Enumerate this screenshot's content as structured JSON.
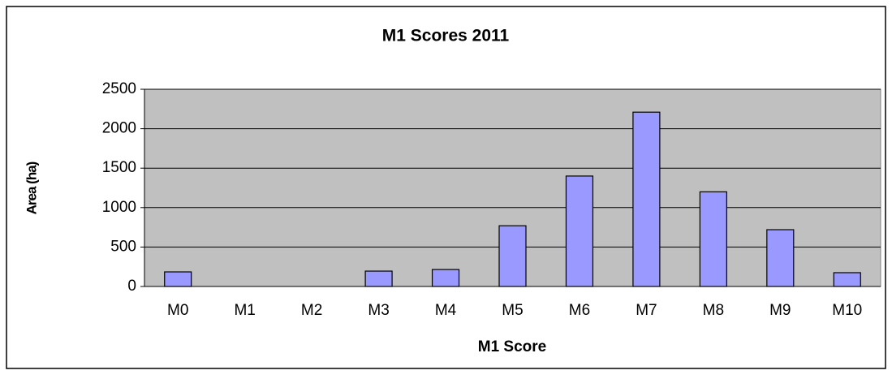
{
  "chart_data": {
    "type": "bar",
    "title": "M1 Scores 2011",
    "x_label": "M1 Score",
    "y_label": "Area (ha)",
    "categories": [
      "M0",
      "M1",
      "M2",
      "M3",
      "M4",
      "M5",
      "M6",
      "M7",
      "M8",
      "M9",
      "M10"
    ],
    "values": [
      185,
      0,
      0,
      195,
      215,
      770,
      1400,
      2210,
      1200,
      720,
      175
    ],
    "color": "#9999ff",
    "ylim": [
      0,
      2500
    ],
    "yticks": [
      0,
      500,
      1000,
      1500,
      2000,
      2500
    ],
    "grid": true
  }
}
